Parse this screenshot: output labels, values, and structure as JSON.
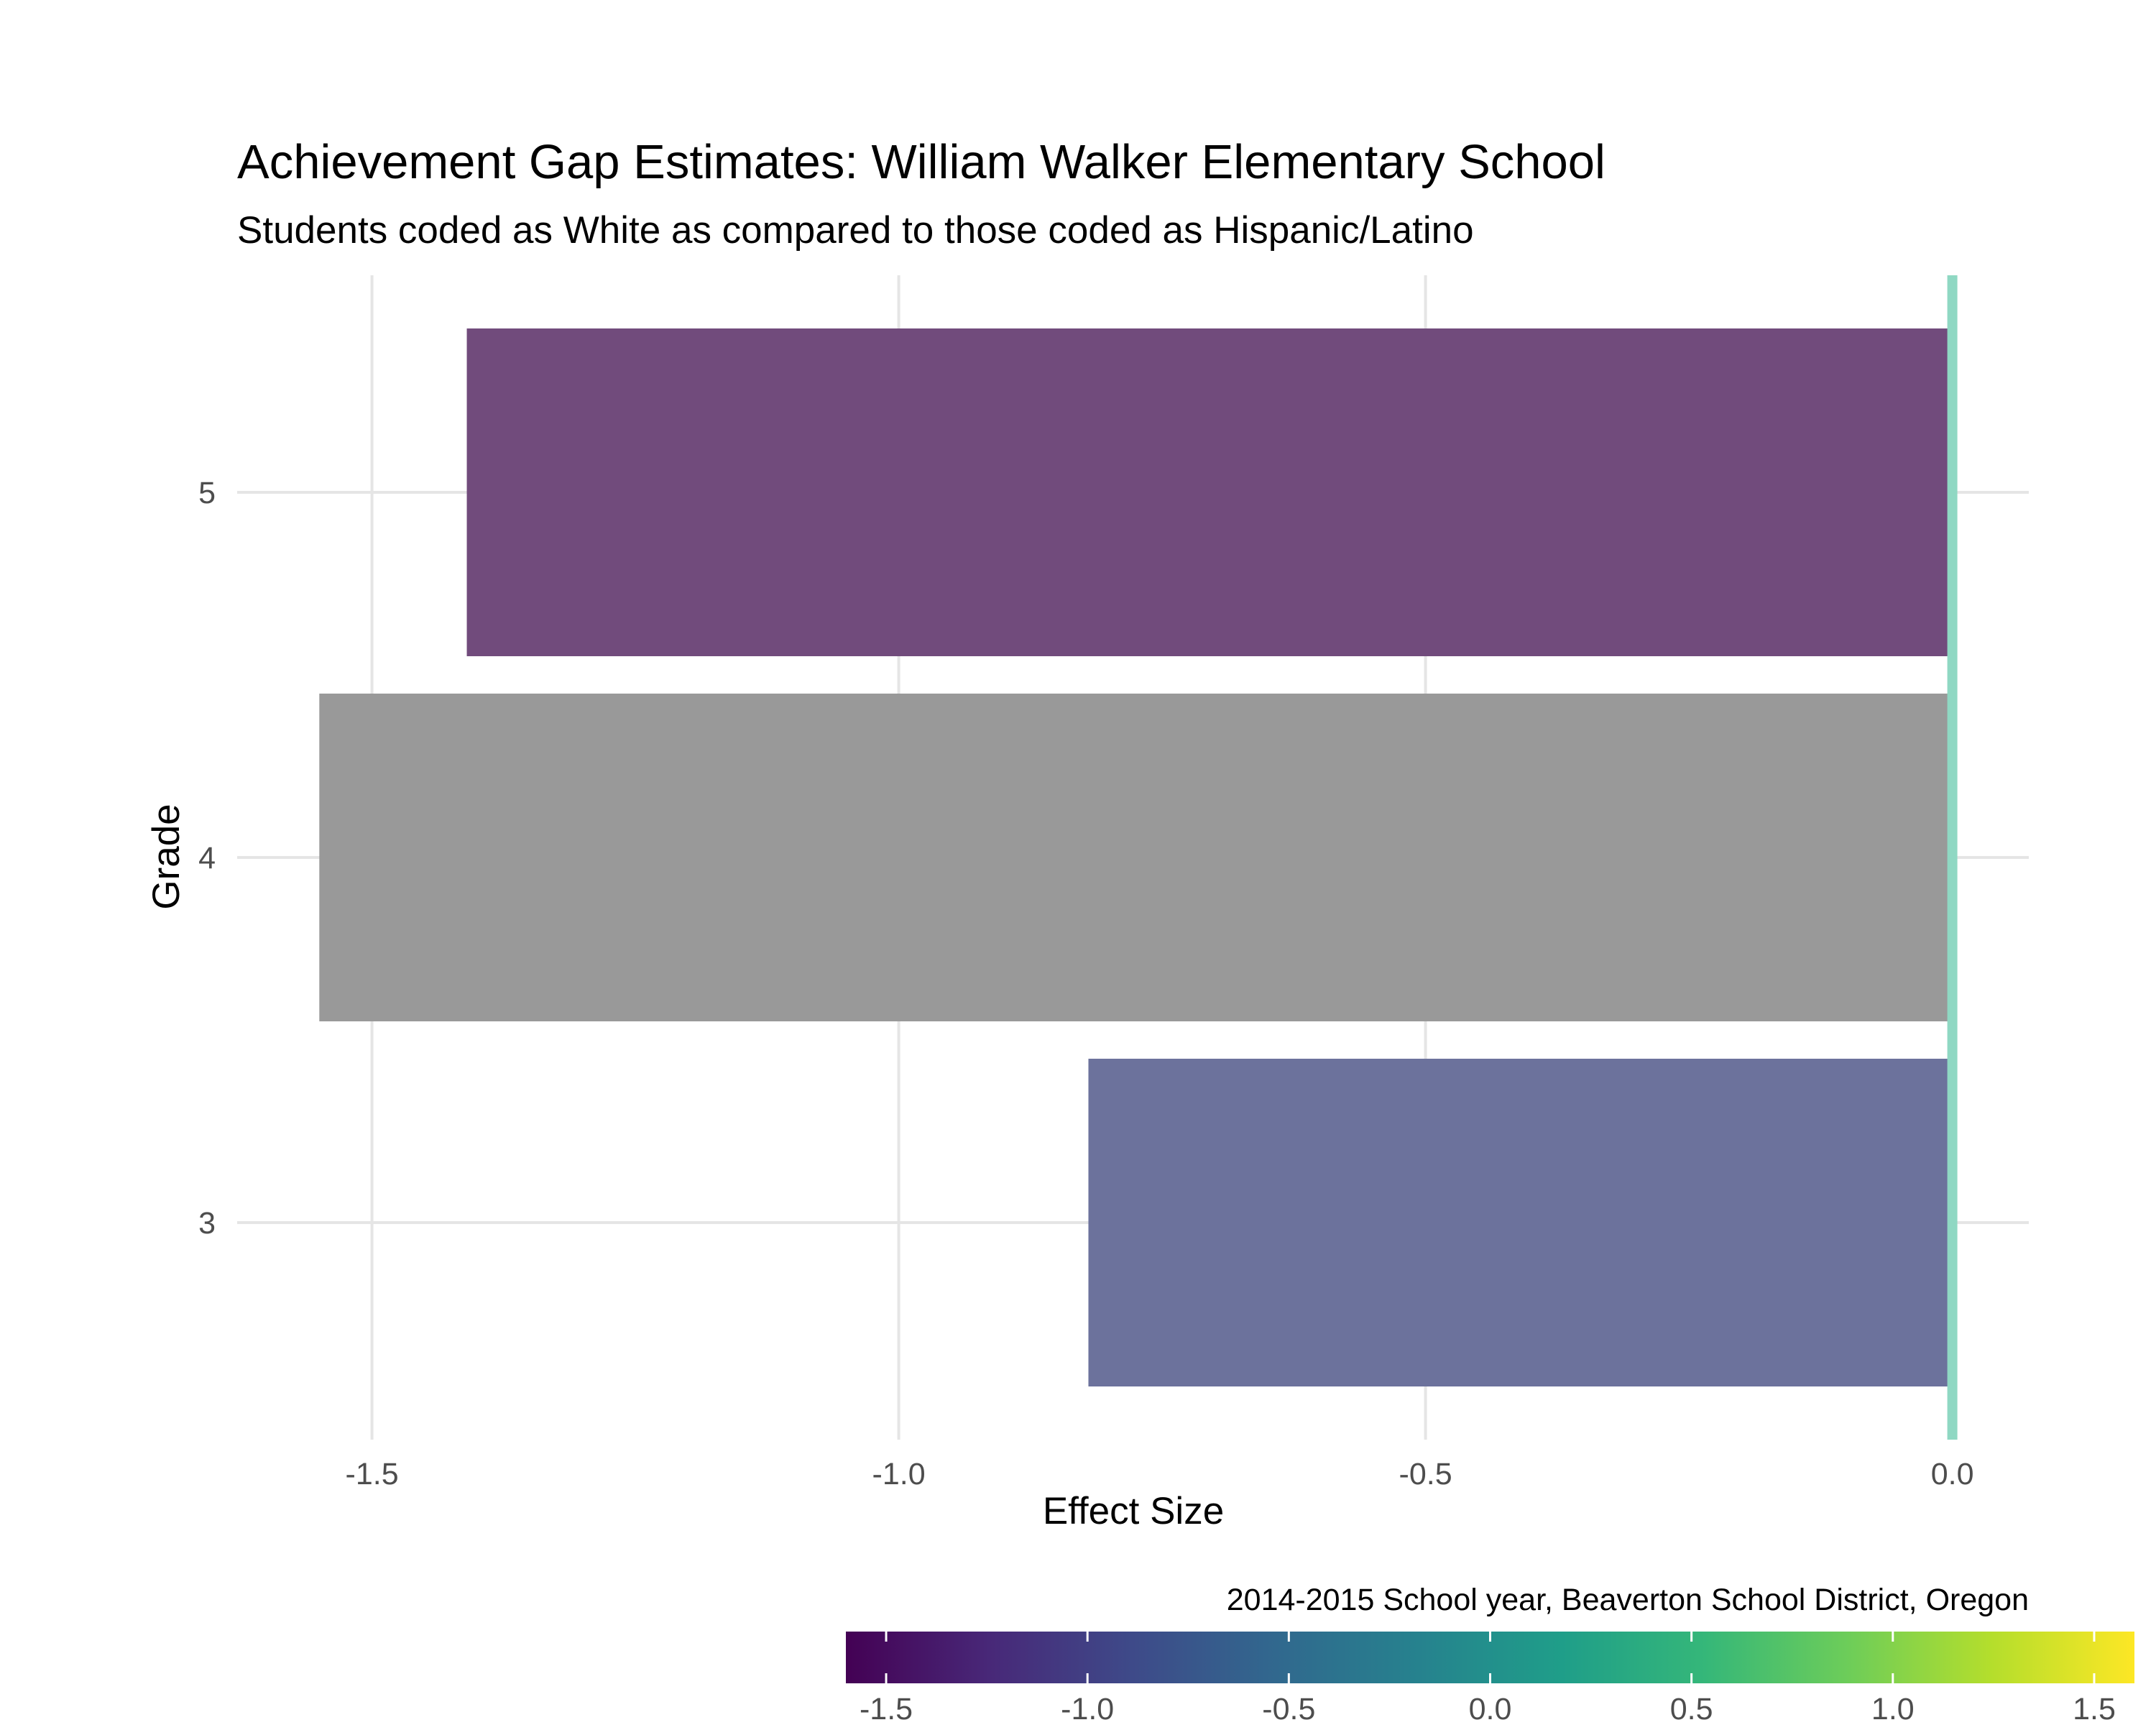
{
  "chart_data": {
    "type": "bar",
    "orientation": "horizontal",
    "title": "Achievement Gap Estimates: William Walker Elementary School",
    "subtitle": "Students coded as White as compared to those coded as Hispanic/Latino",
    "xlabel": "Effect Size",
    "ylabel": "Grade",
    "caption": "2014-2015 School year, Beaverton School District, Oregon",
    "categories": [
      "3",
      "4",
      "5"
    ],
    "values": [
      -0.82,
      -1.55,
      -1.41
    ],
    "bar_colors": [
      "#6c729c",
      "#999999",
      "#714b7c"
    ],
    "reference_line": {
      "x": 0.0,
      "color": "#8fd8c3"
    },
    "xlim": [
      -1.63,
      0.08
    ],
    "xticks": [
      -1.5,
      -1.0,
      -0.5,
      0.0
    ],
    "xtick_labels": [
      "-1.5",
      "-1.0",
      "-0.5",
      "0.0"
    ],
    "grid": true,
    "legend": {
      "type": "colorbar",
      "placement": "bottom-right",
      "range": [
        -1.6,
        1.6
      ],
      "ticks": [
        -1.5,
        -1.0,
        -0.5,
        0.0,
        0.5,
        1.0,
        1.5
      ],
      "tick_labels": [
        "-1.5",
        "-1.0",
        "-0.5",
        "0.0",
        "0.5",
        "1.0",
        "1.5"
      ],
      "palette": [
        "#440154",
        "#482878",
        "#3e4a89",
        "#31688e",
        "#26828e",
        "#1f9e89",
        "#35b779",
        "#6dcd59",
        "#b4de2c",
        "#fde725"
      ]
    }
  }
}
